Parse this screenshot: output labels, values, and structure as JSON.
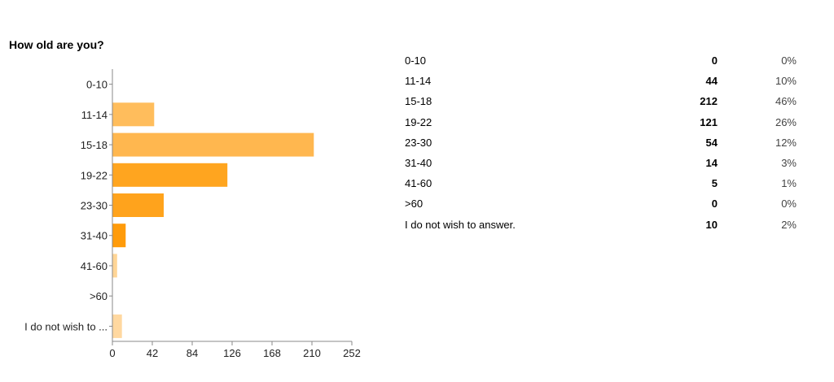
{
  "question": "How old are you?",
  "chart_data": {
    "type": "bar",
    "orientation": "horizontal",
    "categories": [
      "0-10",
      "11-14",
      "15-18",
      "19-22",
      "23-30",
      "31-40",
      "41-60",
      ">60",
      "I do not wish to ..."
    ],
    "values": [
      0,
      44,
      212,
      121,
      54,
      14,
      5,
      0,
      10
    ],
    "xlim": [
      0,
      252
    ],
    "xticks": [
      "0",
      "42",
      "84",
      "126",
      "168",
      "210",
      "252"
    ],
    "grid": false,
    "colors": [
      "#ffcf8a",
      "#ffbd5c",
      "#ffb74f",
      "#ffa51f",
      "#ffa31c",
      "#ff9b0a",
      "#ffd596",
      "#ffd596",
      "#ffd8a0"
    ]
  },
  "summary": [
    {
      "category": "0-10",
      "count": "0",
      "percent": "0%"
    },
    {
      "category": "11-14",
      "count": "44",
      "percent": "10%"
    },
    {
      "category": "15-18",
      "count": "212",
      "percent": "46%"
    },
    {
      "category": "19-22",
      "count": "121",
      "percent": "26%"
    },
    {
      "category": "23-30",
      "count": "54",
      "percent": "12%"
    },
    {
      "category": "31-40",
      "count": "14",
      "percent": "3%"
    },
    {
      "category": "41-60",
      "count": "5",
      "percent": "1%"
    },
    {
      "category": ">60",
      "count": "0",
      "percent": "0%"
    },
    {
      "category": "I do not wish to answer.",
      "count": "10",
      "percent": "2%"
    }
  ]
}
